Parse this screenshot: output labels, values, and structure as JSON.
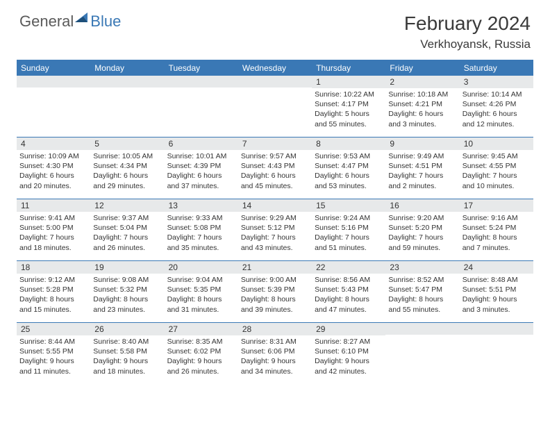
{
  "brand": {
    "part1": "General",
    "part2": "Blue"
  },
  "title": "February 2024",
  "location": "Verkhoyansk, Russia",
  "colors": {
    "header_bg": "#3a78b5",
    "daynum_bg": "#e7e9ea",
    "text": "#333333",
    "brand_gray": "#5a5a5a",
    "brand_blue": "#3a78b5",
    "page_bg": "#ffffff"
  },
  "typography": {
    "title_fontsize": 28,
    "location_fontsize": 17,
    "header_cell_fontsize": 12,
    "daynum_fontsize": 12,
    "body_fontsize": 10.5
  },
  "day_headers": [
    "Sunday",
    "Monday",
    "Tuesday",
    "Wednesday",
    "Thursday",
    "Friday",
    "Saturday"
  ],
  "weeks": [
    [
      {
        "num": "",
        "sunrise": "",
        "sunset": "",
        "daylight": ""
      },
      {
        "num": "",
        "sunrise": "",
        "sunset": "",
        "daylight": ""
      },
      {
        "num": "",
        "sunrise": "",
        "sunset": "",
        "daylight": ""
      },
      {
        "num": "",
        "sunrise": "",
        "sunset": "",
        "daylight": ""
      },
      {
        "num": "1",
        "sunrise": "Sunrise: 10:22 AM",
        "sunset": "Sunset: 4:17 PM",
        "daylight": "Daylight: 5 hours and 55 minutes."
      },
      {
        "num": "2",
        "sunrise": "Sunrise: 10:18 AM",
        "sunset": "Sunset: 4:21 PM",
        "daylight": "Daylight: 6 hours and 3 minutes."
      },
      {
        "num": "3",
        "sunrise": "Sunrise: 10:14 AM",
        "sunset": "Sunset: 4:26 PM",
        "daylight": "Daylight: 6 hours and 12 minutes."
      }
    ],
    [
      {
        "num": "4",
        "sunrise": "Sunrise: 10:09 AM",
        "sunset": "Sunset: 4:30 PM",
        "daylight": "Daylight: 6 hours and 20 minutes."
      },
      {
        "num": "5",
        "sunrise": "Sunrise: 10:05 AM",
        "sunset": "Sunset: 4:34 PM",
        "daylight": "Daylight: 6 hours and 29 minutes."
      },
      {
        "num": "6",
        "sunrise": "Sunrise: 10:01 AM",
        "sunset": "Sunset: 4:39 PM",
        "daylight": "Daylight: 6 hours and 37 minutes."
      },
      {
        "num": "7",
        "sunrise": "Sunrise: 9:57 AM",
        "sunset": "Sunset: 4:43 PM",
        "daylight": "Daylight: 6 hours and 45 minutes."
      },
      {
        "num": "8",
        "sunrise": "Sunrise: 9:53 AM",
        "sunset": "Sunset: 4:47 PM",
        "daylight": "Daylight: 6 hours and 53 minutes."
      },
      {
        "num": "9",
        "sunrise": "Sunrise: 9:49 AM",
        "sunset": "Sunset: 4:51 PM",
        "daylight": "Daylight: 7 hours and 2 minutes."
      },
      {
        "num": "10",
        "sunrise": "Sunrise: 9:45 AM",
        "sunset": "Sunset: 4:55 PM",
        "daylight": "Daylight: 7 hours and 10 minutes."
      }
    ],
    [
      {
        "num": "11",
        "sunrise": "Sunrise: 9:41 AM",
        "sunset": "Sunset: 5:00 PM",
        "daylight": "Daylight: 7 hours and 18 minutes."
      },
      {
        "num": "12",
        "sunrise": "Sunrise: 9:37 AM",
        "sunset": "Sunset: 5:04 PM",
        "daylight": "Daylight: 7 hours and 26 minutes."
      },
      {
        "num": "13",
        "sunrise": "Sunrise: 9:33 AM",
        "sunset": "Sunset: 5:08 PM",
        "daylight": "Daylight: 7 hours and 35 minutes."
      },
      {
        "num": "14",
        "sunrise": "Sunrise: 9:29 AM",
        "sunset": "Sunset: 5:12 PM",
        "daylight": "Daylight: 7 hours and 43 minutes."
      },
      {
        "num": "15",
        "sunrise": "Sunrise: 9:24 AM",
        "sunset": "Sunset: 5:16 PM",
        "daylight": "Daylight: 7 hours and 51 minutes."
      },
      {
        "num": "16",
        "sunrise": "Sunrise: 9:20 AM",
        "sunset": "Sunset: 5:20 PM",
        "daylight": "Daylight: 7 hours and 59 minutes."
      },
      {
        "num": "17",
        "sunrise": "Sunrise: 9:16 AM",
        "sunset": "Sunset: 5:24 PM",
        "daylight": "Daylight: 8 hours and 7 minutes."
      }
    ],
    [
      {
        "num": "18",
        "sunrise": "Sunrise: 9:12 AM",
        "sunset": "Sunset: 5:28 PM",
        "daylight": "Daylight: 8 hours and 15 minutes."
      },
      {
        "num": "19",
        "sunrise": "Sunrise: 9:08 AM",
        "sunset": "Sunset: 5:32 PM",
        "daylight": "Daylight: 8 hours and 23 minutes."
      },
      {
        "num": "20",
        "sunrise": "Sunrise: 9:04 AM",
        "sunset": "Sunset: 5:35 PM",
        "daylight": "Daylight: 8 hours and 31 minutes."
      },
      {
        "num": "21",
        "sunrise": "Sunrise: 9:00 AM",
        "sunset": "Sunset: 5:39 PM",
        "daylight": "Daylight: 8 hours and 39 minutes."
      },
      {
        "num": "22",
        "sunrise": "Sunrise: 8:56 AM",
        "sunset": "Sunset: 5:43 PM",
        "daylight": "Daylight: 8 hours and 47 minutes."
      },
      {
        "num": "23",
        "sunrise": "Sunrise: 8:52 AM",
        "sunset": "Sunset: 5:47 PM",
        "daylight": "Daylight: 8 hours and 55 minutes."
      },
      {
        "num": "24",
        "sunrise": "Sunrise: 8:48 AM",
        "sunset": "Sunset: 5:51 PM",
        "daylight": "Daylight: 9 hours and 3 minutes."
      }
    ],
    [
      {
        "num": "25",
        "sunrise": "Sunrise: 8:44 AM",
        "sunset": "Sunset: 5:55 PM",
        "daylight": "Daylight: 9 hours and 11 minutes."
      },
      {
        "num": "26",
        "sunrise": "Sunrise: 8:40 AM",
        "sunset": "Sunset: 5:58 PM",
        "daylight": "Daylight: 9 hours and 18 minutes."
      },
      {
        "num": "27",
        "sunrise": "Sunrise: 8:35 AM",
        "sunset": "Sunset: 6:02 PM",
        "daylight": "Daylight: 9 hours and 26 minutes."
      },
      {
        "num": "28",
        "sunrise": "Sunrise: 8:31 AM",
        "sunset": "Sunset: 6:06 PM",
        "daylight": "Daylight: 9 hours and 34 minutes."
      },
      {
        "num": "29",
        "sunrise": "Sunrise: 8:27 AM",
        "sunset": "Sunset: 6:10 PM",
        "daylight": "Daylight: 9 hours and 42 minutes."
      },
      {
        "num": "",
        "sunrise": "",
        "sunset": "",
        "daylight": ""
      },
      {
        "num": "",
        "sunrise": "",
        "sunset": "",
        "daylight": ""
      }
    ]
  ]
}
